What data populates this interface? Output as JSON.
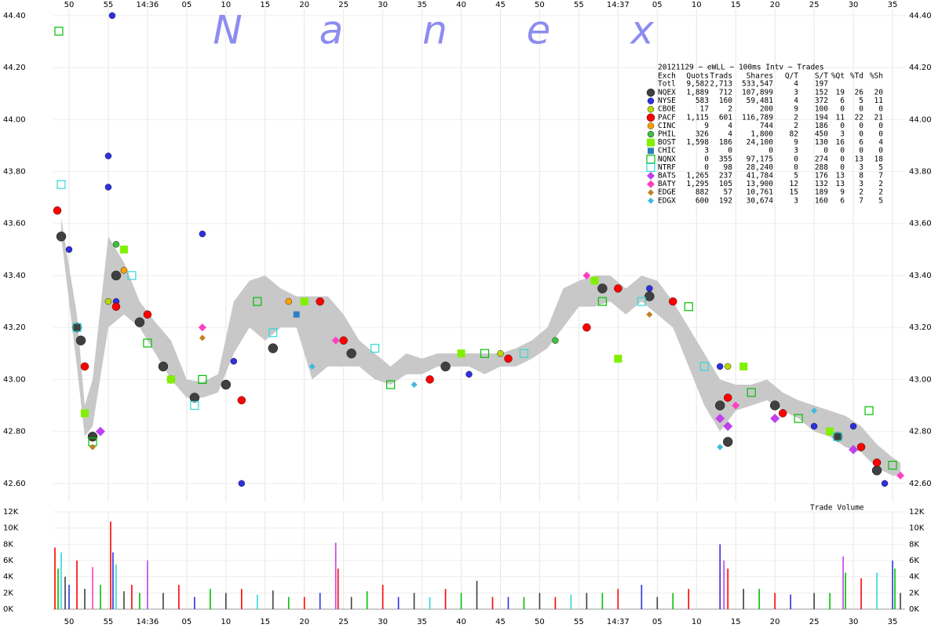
{
  "chart_data": [
    {
      "type": "scatter",
      "title": "20121129 ~ eWLL ~ 100ms Intv ~ Trades",
      "watermark": [
        "N",
        "a",
        "n",
        "e",
        "x"
      ],
      "columns": [
        "Exch",
        "Quots",
        "Trads",
        "Shares",
        "Q/T",
        "S/T",
        "%Qt",
        "%Td",
        "%Sh"
      ],
      "total": [
        "Totl",
        "9,582",
        "2,713",
        "533,547",
        "4",
        "197"
      ],
      "xlim": [
        48,
        156.6
      ],
      "xticks": [
        {
          "value": 50,
          "label": "50"
        },
        {
          "value": 55,
          "label": "55"
        },
        {
          "value": 60,
          "label": "14:36"
        },
        {
          "value": 65,
          "label": "05"
        },
        {
          "value": 70,
          "label": "10"
        },
        {
          "value": 75,
          "label": "15"
        },
        {
          "value": 80,
          "label": "20"
        },
        {
          "value": 85,
          "label": "25"
        },
        {
          "value": 90,
          "label": "30"
        },
        {
          "value": 95,
          "label": "35"
        },
        {
          "value": 100,
          "label": "40"
        },
        {
          "value": 105,
          "label": "45"
        },
        {
          "value": 110,
          "label": "50"
        },
        {
          "value": 115,
          "label": "55"
        },
        {
          "value": 120,
          "label": "14:37"
        },
        {
          "value": 125,
          "label": "05"
        },
        {
          "value": 130,
          "label": "10"
        },
        {
          "value": 135,
          "label": "15"
        },
        {
          "value": 140,
          "label": "20"
        },
        {
          "value": 145,
          "label": "25"
        },
        {
          "value": 150,
          "label": "30"
        },
        {
          "value": 155,
          "label": "35"
        }
      ],
      "ylim": [
        42.53,
        44.46
      ],
      "yticks": [
        {
          "value": 42.6,
          "label": "42.60"
        },
        {
          "value": 42.8,
          "label": "42.80"
        },
        {
          "value": 43,
          "label": "43.00"
        },
        {
          "value": 43.2,
          "label": "43.20"
        },
        {
          "value": 43.4,
          "label": "43.40"
        },
        {
          "value": 43.6,
          "label": "43.60"
        },
        {
          "value": 43.8,
          "label": "43.80"
        },
        {
          "value": 44,
          "label": "44.00"
        },
        {
          "value": 44.2,
          "label": "44.20"
        },
        {
          "value": 44.4,
          "label": "44.40"
        }
      ],
      "grid": true,
      "band": {
        "color": "#c8c8c8",
        "x": [
          49,
          51,
          52,
          53,
          55,
          57,
          59,
          61,
          63,
          65,
          67,
          69,
          71,
          73,
          75,
          77,
          79,
          81,
          83,
          85,
          87,
          89,
          91,
          93,
          95,
          97,
          99,
          101,
          103,
          105,
          107,
          109,
          111,
          113,
          115,
          117,
          119,
          121,
          123,
          125,
          127,
          129,
          131,
          133,
          135,
          137,
          139,
          141,
          143,
          145,
          147,
          149,
          151,
          153,
          155,
          156
        ],
        "low": [
          43.55,
          43.05,
          42.78,
          42.82,
          43.2,
          43.25,
          43.2,
          43.1,
          43.0,
          42.93,
          42.93,
          42.95,
          43.1,
          43.2,
          43.15,
          43.2,
          43.2,
          43.0,
          43.05,
          43.05,
          43.05,
          43.0,
          42.98,
          43.02,
          43.02,
          43.05,
          43.05,
          43.05,
          43.02,
          43.05,
          43.05,
          43.08,
          43.12,
          43.2,
          43.28,
          43.28,
          43.3,
          43.25,
          43.3,
          43.25,
          43.2,
          43.05,
          42.9,
          42.8,
          42.88,
          42.9,
          42.92,
          42.88,
          42.85,
          42.8,
          42.78,
          42.74,
          42.72,
          42.66,
          42.63,
          42.63
        ],
        "high": [
          43.62,
          43.25,
          42.9,
          43.0,
          43.55,
          43.45,
          43.3,
          43.22,
          43.15,
          43.0,
          42.99,
          43.02,
          43.3,
          43.38,
          43.4,
          43.35,
          43.32,
          43.32,
          43.32,
          43.25,
          43.15,
          43.1,
          43.05,
          43.1,
          43.08,
          43.1,
          43.1,
          43.1,
          43.1,
          43.1,
          43.12,
          43.15,
          43.2,
          43.35,
          43.38,
          43.4,
          43.4,
          43.35,
          43.4,
          43.38,
          43.3,
          43.2,
          43.1,
          43.0,
          42.98,
          42.98,
          43.0,
          42.95,
          42.92,
          42.9,
          42.88,
          42.86,
          42.82,
          42.75,
          42.7,
          42.68
        ]
      },
      "series": [
        {
          "name": "NQEX",
          "stats": [
            "1,889",
            "712",
            "107,899",
            "3",
            "152",
            "19",
            "26",
            "20"
          ],
          "color": "#404040",
          "marker": "circle",
          "size": 6,
          "x": [
            49,
            51,
            51.5,
            53,
            56,
            59,
            62,
            66,
            70,
            76,
            86,
            98,
            118,
            124,
            133,
            134,
            140,
            148,
            153
          ],
          "values": [
            43.55,
            43.2,
            43.15,
            42.78,
            43.4,
            43.22,
            43.05,
            42.93,
            42.98,
            43.12,
            43.1,
            43.05,
            43.35,
            43.32,
            42.9,
            42.76,
            42.9,
            42.78,
            42.65
          ]
        },
        {
          "name": "NYSE",
          "stats": [
            "583",
            "160",
            "59,481",
            "4",
            "372",
            "6",
            "5",
            "11"
          ],
          "color": "#3030e0",
          "marker": "circle",
          "size": 4,
          "x": [
            50,
            55.5,
            55,
            55,
            56,
            67,
            71,
            72,
            101,
            124,
            133,
            145,
            150,
            154
          ],
          "values": [
            43.5,
            44.4,
            43.86,
            43.74,
            43.3,
            43.56,
            43.07,
            42.6,
            43.02,
            43.35,
            43.05,
            42.82,
            42.82,
            42.6
          ]
        },
        {
          "name": "CBOE",
          "stats": [
            "17",
            "2",
            "200",
            "9",
            "100",
            "0",
            "0",
            "0"
          ],
          "color": "#b8d800",
          "marker": "circle",
          "size": 4,
          "x": [
            55,
            105,
            134
          ],
          "values": [
            43.3,
            43.1,
            43.05
          ]
        },
        {
          "name": "PACF",
          "stats": [
            "1,115",
            "601",
            "116,789",
            "2",
            "194",
            "11",
            "22",
            "21"
          ],
          "color": "#ff0000",
          "marker": "circle",
          "size": 5,
          "x": [
            48.5,
            52,
            56,
            60,
            63,
            72,
            82,
            85,
            96,
            106,
            116,
            120,
            127,
            134,
            141,
            151,
            153
          ],
          "values": [
            43.65,
            43.05,
            43.28,
            43.25,
            43.0,
            42.92,
            43.3,
            43.15,
            43.0,
            43.08,
            43.2,
            43.35,
            43.3,
            42.93,
            42.87,
            42.74,
            42.68
          ]
        },
        {
          "name": "CINC",
          "stats": [
            "9",
            "4",
            "744",
            "2",
            "186",
            "0",
            "0",
            "0"
          ],
          "color": "#ffa000",
          "marker": "circle",
          "size": 4,
          "x": [
            57,
            78
          ],
          "values": [
            43.42,
            43.3
          ]
        },
        {
          "name": "PHIL",
          "stats": [
            "326",
            "4",
            "1,800",
            "82",
            "450",
            "3",
            "0",
            "0"
          ],
          "color": "#40c040",
          "marker": "circle",
          "size": 4,
          "x": [
            56,
            112
          ],
          "values": [
            43.52,
            43.15
          ]
        },
        {
          "name": "BOST",
          "stats": [
            "1,598",
            "186",
            "24,100",
            "9",
            "130",
            "16",
            "6",
            "4"
          ],
          "color": "#80f000",
          "marker": "square",
          "size": 5,
          "x": [
            52,
            57,
            63,
            80,
            100,
            117,
            120,
            136,
            147
          ],
          "values": [
            42.87,
            43.5,
            43.0,
            43.3,
            43.1,
            43.38,
            43.08,
            43.05,
            42.8
          ]
        },
        {
          "name": "CHIC",
          "stats": [
            "3",
            "0",
            "0",
            "3",
            "0",
            "0",
            "0",
            "0"
          ],
          "color": "#3080c0",
          "marker": "square",
          "size": 4,
          "x": [
            79
          ],
          "values": [
            43.25
          ]
        },
        {
          "name": "NQNX",
          "stats": [
            "0",
            "355",
            "97,175",
            "0",
            "274",
            "0",
            "13",
            "18"
          ],
          "color": "#00c000",
          "marker": "square-open",
          "size": 5,
          "x": [
            48.7,
            53,
            60,
            67,
            74,
            91,
            103,
            118,
            129,
            137,
            143,
            152,
            155
          ],
          "values": [
            44.34,
            42.76,
            43.14,
            43.0,
            43.3,
            42.98,
            43.1,
            43.3,
            43.28,
            42.95,
            42.85,
            42.88,
            42.67
          ]
        },
        {
          "name": "NTRF",
          "stats": [
            "0",
            "98",
            "28,240",
            "0",
            "288",
            "0",
            "3",
            "5"
          ],
          "color": "#30d8d8",
          "marker": "square-open",
          "size": 5,
          "x": [
            49,
            51,
            58,
            66,
            76,
            89,
            108,
            123,
            131,
            148
          ],
          "values": [
            43.75,
            43.2,
            43.4,
            42.9,
            43.18,
            43.12,
            43.1,
            43.3,
            43.05,
            42.78
          ]
        },
        {
          "name": "BATS",
          "stats": [
            "1,265",
            "237",
            "41,784",
            "5",
            "176",
            "13",
            "8",
            "7"
          ],
          "color": "#c040f0",
          "marker": "diamond",
          "size": 6,
          "x": [
            54,
            133,
            134,
            140,
            150
          ],
          "values": [
            42.8,
            42.85,
            42.82,
            42.85,
            42.73
          ]
        },
        {
          "name": "BATY",
          "stats": [
            "1,295",
            "105",
            "13,900",
            "12",
            "132",
            "13",
            "3",
            "2"
          ],
          "color": "#ff40c0",
          "marker": "diamond",
          "size": 5,
          "x": [
            67,
            84,
            116,
            135,
            156
          ],
          "values": [
            43.2,
            43.15,
            43.4,
            42.9,
            42.63
          ]
        },
        {
          "name": "EDGE",
          "stats": [
            "882",
            "57",
            "10,761",
            "15",
            "189",
            "9",
            "2",
            "2"
          ],
          "color": "#c08020",
          "marker": "diamond",
          "size": 4,
          "x": [
            53,
            67,
            124
          ],
          "values": [
            42.74,
            43.16,
            43.25
          ]
        },
        {
          "name": "EDGX",
          "stats": [
            "600",
            "192",
            "30,674",
            "3",
            "160",
            "6",
            "7",
            "5"
          ],
          "color": "#40b8e0",
          "marker": "diamond",
          "size": 4,
          "x": [
            81,
            94,
            133,
            145
          ],
          "values": [
            43.05,
            42.98,
            42.74,
            42.88
          ]
        }
      ]
    },
    {
      "type": "bar",
      "title": "Trade Volume",
      "ylim": [
        0,
        12000
      ],
      "yticks": [
        {
          "value": 0,
          "label": "0K"
        },
        {
          "value": 2000,
          "label": "2K"
        },
        {
          "value": 4000,
          "label": "4K"
        },
        {
          "value": 6000,
          "label": "6K"
        },
        {
          "value": 8000,
          "label": "8K"
        },
        {
          "value": 10000,
          "label": "10K"
        },
        {
          "value": 12000,
          "label": "12K"
        }
      ],
      "x": [
        48.2,
        48.6,
        49,
        49.5,
        50,
        51,
        52,
        53,
        54,
        55.3,
        55.6,
        56,
        57,
        58,
        59,
        60,
        62,
        64,
        66,
        68,
        70,
        72,
        74,
        76,
        78,
        80,
        82,
        84,
        84.3,
        86,
        88,
        90,
        92,
        94,
        96,
        98,
        100,
        102,
        104,
        106,
        108,
        110,
        112,
        114,
        116,
        118,
        120,
        123,
        125,
        127,
        129,
        133,
        133.5,
        134,
        136,
        138,
        140,
        142,
        145,
        147,
        148.7,
        149,
        151,
        153,
        155,
        155.3,
        156
      ],
      "values": [
        7600,
        5000,
        7000,
        4000,
        3000,
        6000,
        2500,
        5200,
        3000,
        10800,
        7000,
        5500,
        2200,
        3000,
        2000,
        6000,
        2000,
        3000,
        1500,
        2500,
        2000,
        2500,
        1800,
        2300,
        1500,
        1500,
        2000,
        8200,
        5000,
        1500,
        2200,
        3000,
        1500,
        2000,
        1500,
        2500,
        2000,
        3500,
        1500,
        1500,
        1500,
        2000,
        1500,
        1800,
        2000,
        2000,
        2500,
        3000,
        1500,
        2000,
        2500,
        8000,
        6000,
        5000,
        2500,
        2500,
        2000,
        1800,
        2000,
        2000,
        6500,
        4500,
        3800,
        4500,
        6000,
        5000,
        2000
      ],
      "colors": [
        "#ff0000",
        "#00c000",
        "#30d8d8",
        "#404040",
        "#3030e0",
        "#ff0000",
        "#404040",
        "#ff40c0",
        "#00c000",
        "#ff0000",
        "#3030e0",
        "#30d8d8",
        "#404040",
        "#ff0000",
        "#00c000",
        "#c040f0",
        "#404040",
        "#ff0000",
        "#3030e0",
        "#00c000",
        "#404040",
        "#ff0000",
        "#30d8d8",
        "#404040",
        "#00c000",
        "#ff0000",
        "#3030e0",
        "#c040f0",
        "#ff0000",
        "#404040",
        "#00c000",
        "#ff0000",
        "#3030e0",
        "#404040",
        "#30d8d8",
        "#ff0000",
        "#00c000",
        "#404040",
        "#ff0000",
        "#3030e0",
        "#00c000",
        "#404040",
        "#ff0000",
        "#30d8d8",
        "#404040",
        "#00c000",
        "#ff0000",
        "#3030e0",
        "#404040",
        "#00c000",
        "#ff0000",
        "#3030e0",
        "#c040f0",
        "#ff0000",
        "#404040",
        "#00c000",
        "#ff0000",
        "#3030e0",
        "#404040",
        "#00c000",
        "#c040f0",
        "#00c000",
        "#ff0000",
        "#30d8d8",
        "#3030e0",
        "#00c000",
        "#404040"
      ]
    }
  ]
}
